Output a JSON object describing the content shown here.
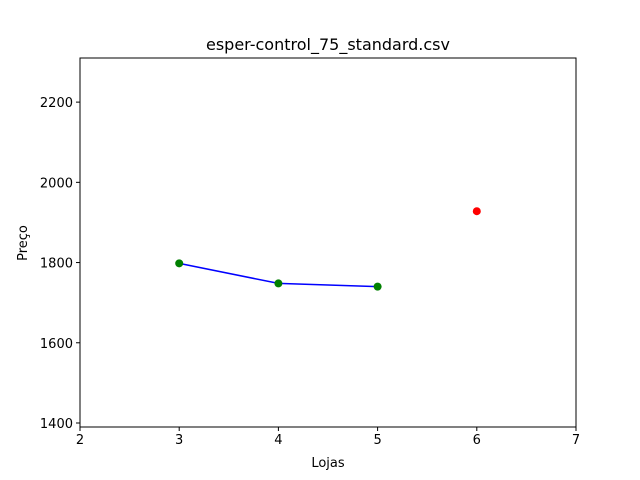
{
  "chart_data": {
    "type": "line",
    "title": "esper-control_75_standard.csv",
    "xlabel": "Lojas",
    "ylabel": "Preço",
    "xlim": [
      2,
      7
    ],
    "ylim": [
      1390,
      2310
    ],
    "x_ticks": [
      "2",
      "3",
      "4",
      "5",
      "6",
      "7"
    ],
    "y_ticks": [
      "1400",
      "1600",
      "1800",
      "2000",
      "2200"
    ],
    "grid": false,
    "series": [
      {
        "line_color": "#0000ff",
        "marker_color": "#008000",
        "points": [
          {
            "x": 3,
            "y": 1798
          },
          {
            "x": 4,
            "y": 1748
          },
          {
            "x": 5,
            "y": 1740
          }
        ]
      },
      {
        "line_color": "none",
        "marker_color": "#ff0000",
        "points": [
          {
            "x": 6,
            "y": 1928
          }
        ]
      }
    ]
  }
}
